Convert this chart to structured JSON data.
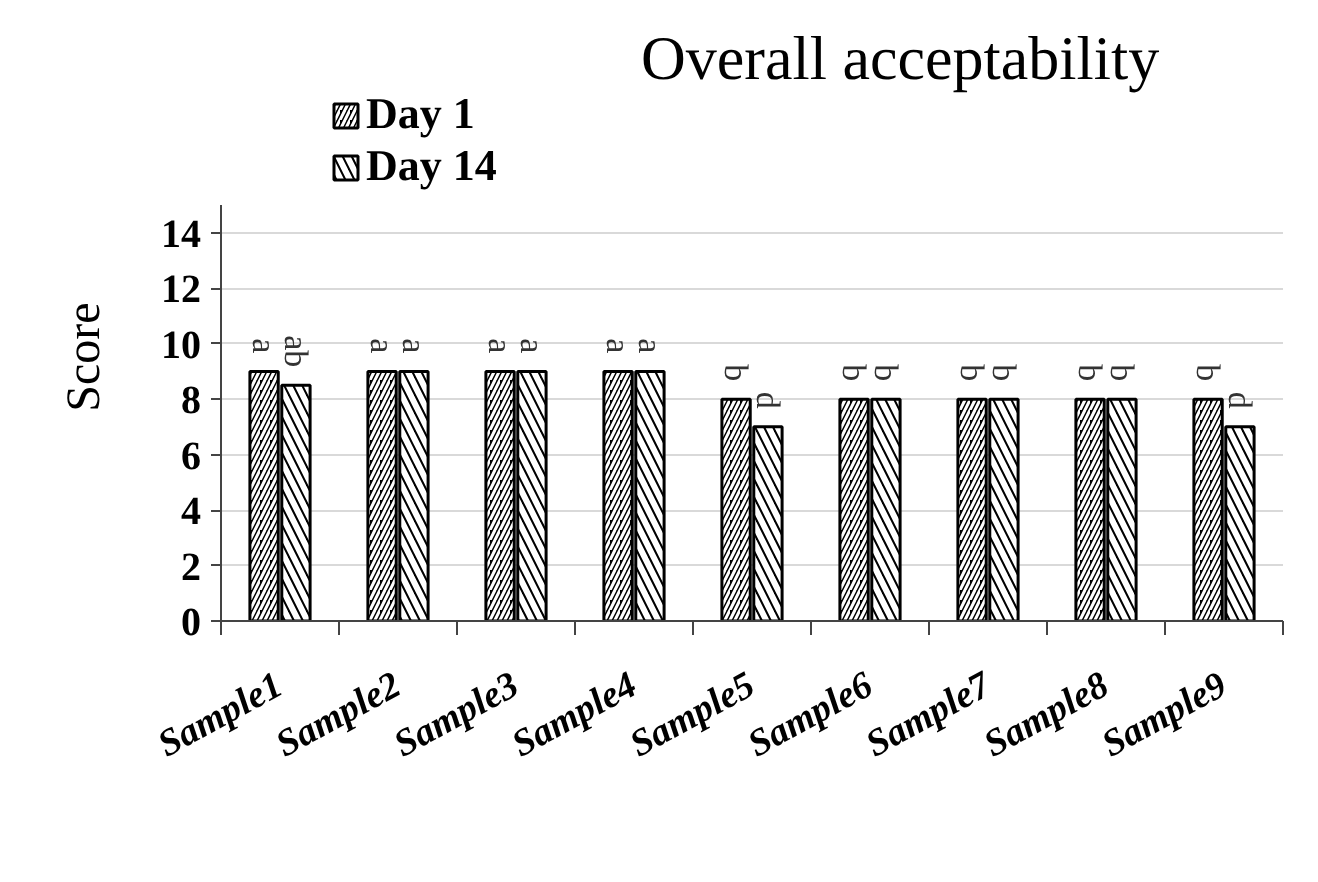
{
  "chart_data": {
    "type": "bar",
    "title": "Overall acceptability",
    "ylabel": "Score",
    "categories": [
      "Sample1",
      "Sample2",
      "Sample3",
      "Sample4",
      "Sample5",
      "Sample6",
      "Sample7",
      "Sample8",
      "Sample9"
    ],
    "series": [
      {
        "name": "Day 1",
        "color": "#000000",
        "values": [
          9,
          9,
          9,
          9,
          8,
          8,
          8,
          8,
          8
        ],
        "value_labels": [
          "a",
          "a",
          "a",
          "a",
          "b",
          "b",
          "b",
          "b",
          "b"
        ]
      },
      {
        "name": "Day 14",
        "color": "#000000",
        "values": [
          8.5,
          9,
          9,
          9,
          7,
          8,
          8,
          8,
          7
        ],
        "value_labels": [
          "ab",
          "a",
          "a",
          "a",
          "d",
          "b",
          "b",
          "b",
          "d"
        ]
      }
    ],
    "ylim": [
      0,
      15
    ],
    "yticks": [
      0,
      2,
      4,
      6,
      8,
      10,
      12,
      14
    ],
    "grid": "y",
    "legend": "top left"
  }
}
